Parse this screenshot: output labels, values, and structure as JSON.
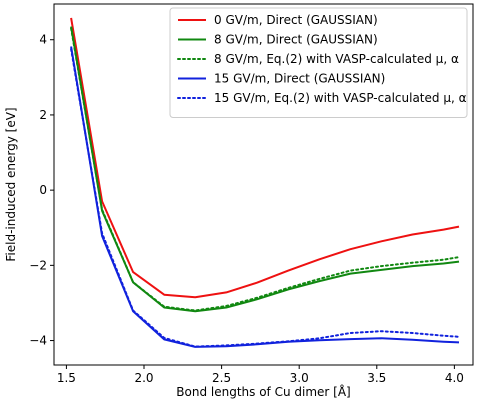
{
  "chart_data": {
    "type": "line",
    "title": "",
    "xlabel": "Bond lengths of Cu dimer [Å]",
    "ylabel": "Field-induced energy [eV]",
    "xlim": [
      1.42,
      4.12
    ],
    "ylim": [
      -4.65,
      4.95
    ],
    "xticks": [
      1.5,
      2.0,
      2.5,
      3.0,
      3.5,
      4.0
    ],
    "xtick_labels": [
      "1.5",
      "2.0",
      "2.5",
      "3.0",
      "3.5",
      "4.0"
    ],
    "yticks": [
      -4,
      -2,
      0,
      2,
      4
    ],
    "ytick_labels": [
      "−4",
      "−2",
      "0",
      "2",
      "4"
    ],
    "grid": false,
    "legend_position": "top-right",
    "series": [
      {
        "name": "0 GV/m, Direct (GAUSSIAN)",
        "color": "#ee1111",
        "style": "solid",
        "x": [
          1.53,
          1.73,
          1.93,
          2.13,
          2.33,
          2.53,
          2.73,
          2.93,
          3.13,
          3.33,
          3.53,
          3.73,
          3.93,
          4.03
        ],
        "y": [
          4.58,
          -0.3,
          -2.18,
          -2.78,
          -2.85,
          -2.72,
          -2.46,
          -2.14,
          -1.84,
          -1.57,
          -1.36,
          -1.18,
          -1.05,
          -0.97
        ]
      },
      {
        "name": "8 GV/m, Direct (GAUSSIAN)",
        "color": "#118811",
        "style": "solid",
        "x": [
          1.53,
          1.73,
          1.93,
          2.13,
          2.33,
          2.53,
          2.73,
          2.93,
          3.13,
          3.33,
          3.53,
          3.73,
          3.93,
          4.03
        ],
        "y": [
          4.35,
          -0.55,
          -2.45,
          -3.12,
          -3.22,
          -3.12,
          -2.9,
          -2.64,
          -2.42,
          -2.22,
          -2.12,
          -2.02,
          -1.95,
          -1.9
        ]
      },
      {
        "name": "8 GV/m, Eq.(2) with VASP-calculated μ, α",
        "color": "#118811",
        "style": "dotted",
        "x": [
          1.53,
          1.73,
          1.93,
          2.13,
          2.33,
          2.53,
          2.73,
          2.93,
          3.13,
          3.33,
          3.53,
          3.73,
          3.93,
          4.03
        ],
        "y": [
          4.3,
          -0.52,
          -2.45,
          -3.1,
          -3.2,
          -3.08,
          -2.86,
          -2.6,
          -2.36,
          -2.14,
          -2.02,
          -1.93,
          -1.85,
          -1.78
        ]
      },
      {
        "name": "15 GV/m, Direct (GAUSSIAN)",
        "color": "#1122dd",
        "style": "solid",
        "x": [
          1.53,
          1.73,
          1.93,
          2.13,
          2.33,
          2.53,
          2.73,
          2.93,
          3.13,
          3.33,
          3.53,
          3.73,
          3.93,
          4.03
        ],
        "y": [
          3.82,
          -1.22,
          -3.22,
          -3.97,
          -4.17,
          -4.15,
          -4.1,
          -4.03,
          -3.99,
          -3.96,
          -3.94,
          -3.98,
          -4.03,
          -4.05
        ]
      },
      {
        "name": "15 GV/m, Eq.(2) with VASP-calculated μ, α",
        "color": "#1122dd",
        "style": "dotted",
        "x": [
          1.53,
          1.73,
          1.93,
          2.13,
          2.33,
          2.53,
          2.73,
          2.93,
          3.13,
          3.33,
          3.53,
          3.73,
          3.93,
          4.03
        ],
        "y": [
          3.75,
          -1.15,
          -3.2,
          -3.93,
          -4.16,
          -4.13,
          -4.08,
          -4.02,
          -3.94,
          -3.8,
          -3.75,
          -3.8,
          -3.87,
          -3.9
        ]
      }
    ]
  }
}
